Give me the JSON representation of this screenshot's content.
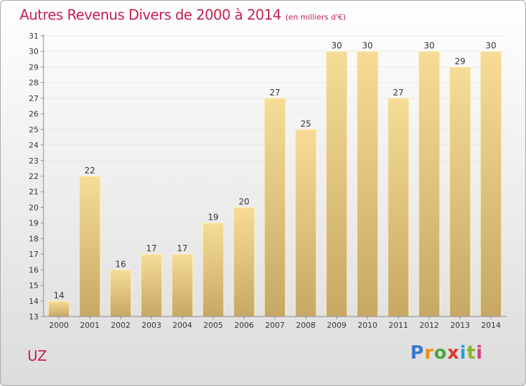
{
  "header": {
    "title": "Autres Revenus Divers de 2000 à 2014",
    "subtitle": "(en milliers d'€)"
  },
  "footer": {
    "place": "UZ",
    "brand": "Proxiti",
    "brand_colors": [
      "#3a78c8",
      "#f08a1c",
      "#4aa83c",
      "#e2342c",
      "#2b9be0",
      "#86b820",
      "#d63d8c"
    ]
  },
  "colors": {
    "title": "#c8204f",
    "bar_light": "#f6dc96",
    "bar_dark": "#c7a865",
    "bar_edge": "#fff3c6",
    "grid": "#e8e8e8",
    "axis": "#8a8a8a"
  },
  "chart_data": {
    "type": "bar",
    "categories": [
      "2000",
      "2001",
      "2002",
      "2003",
      "2004",
      "2005",
      "2006",
      "2007",
      "2008",
      "2009",
      "2010",
      "2011",
      "2012",
      "2013",
      "2014"
    ],
    "values": [
      14,
      22,
      16,
      17,
      17,
      19,
      20,
      27,
      25,
      30,
      30,
      27,
      30,
      29,
      30
    ],
    "ylim": [
      13,
      31
    ],
    "yticks": [
      13,
      14,
      15,
      16,
      17,
      18,
      19,
      20,
      21,
      22,
      23,
      24,
      25,
      26,
      27,
      28,
      29,
      30,
      31
    ],
    "grid": true,
    "legend": "none"
  }
}
